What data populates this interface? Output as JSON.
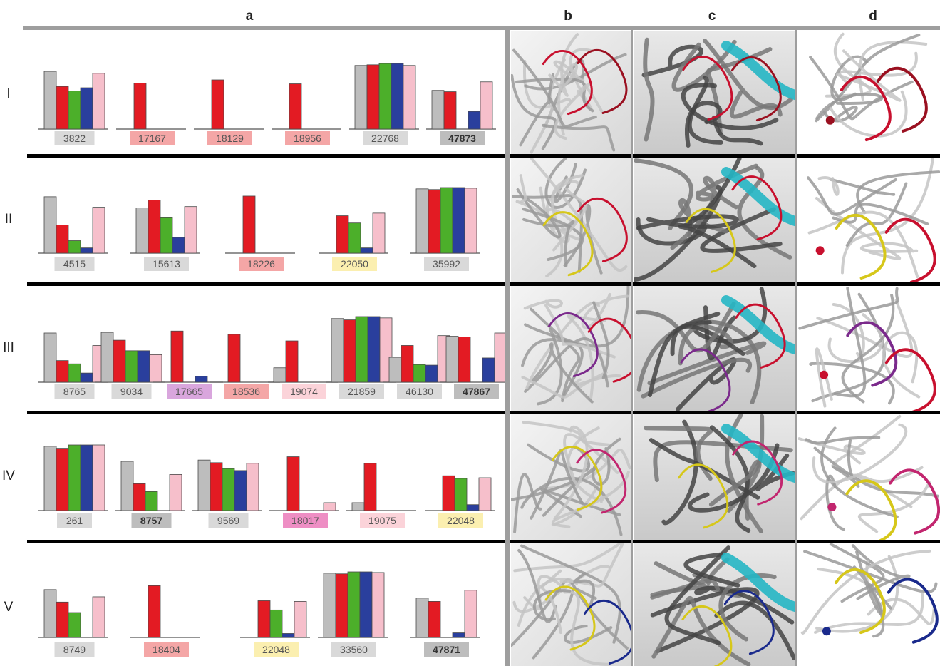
{
  "column_headers": [
    "a",
    "b",
    "c",
    "d"
  ],
  "row_labels": [
    "I",
    "II",
    "III",
    "IV",
    "V"
  ],
  "colors": {
    "gray": "#bdbdbd",
    "red": "#e31b23",
    "green": "#4caf2a",
    "blue": "#2a3f9d",
    "pink": "#f6bfcb",
    "label_gray": "#d9d9d9",
    "label_dark": "#bdbdbd",
    "label_red": "#f4a6a6",
    "label_yellow": "#fbefb0",
    "label_purple": "#d9a6dd",
    "label_magenta": "#ee8ec4",
    "label_pink": "#fbd3d9",
    "cyan_helix": "#25b6c4",
    "structure_gray": "#5b5b5b"
  },
  "chart_data": {
    "type": "bar",
    "series_order": [
      "gray",
      "red",
      "green",
      "blue",
      "pink"
    ],
    "ylim": [
      0,
      1
    ],
    "rows": [
      {
        "label": "I",
        "charts": [
          {
            "id": "3822",
            "tag": "label_gray",
            "bold": false,
            "values": [
              0.88,
              0.65,
              0.58,
              0.63,
              0.85
            ]
          },
          {
            "id": "17167",
            "tag": "label_red",
            "bold": false,
            "values": [
              0,
              0.7,
              0,
              0,
              0
            ]
          },
          {
            "id": "18129",
            "tag": "label_red",
            "bold": false,
            "values": [
              0,
              0.75,
              0,
              0,
              0
            ]
          },
          {
            "id": "18956",
            "tag": "label_red",
            "bold": false,
            "values": [
              0,
              0.69,
              0,
              0,
              0
            ]
          },
          {
            "id": "22768",
            "tag": "label_gray",
            "bold": false,
            "values": [
              0.97,
              0.98,
              1.0,
              1.0,
              0.97
            ]
          },
          {
            "id": "47873",
            "tag": "label_dark",
            "bold": true,
            "values": [
              0.59,
              0.57,
              0,
              0.27,
              0.72
            ]
          }
        ]
      },
      {
        "label": "II",
        "charts": [
          {
            "id": "4515",
            "tag": "label_gray",
            "bold": false,
            "values": [
              0.86,
              0.43,
              0.19,
              0.08,
              0.7
            ]
          },
          {
            "id": "15613",
            "tag": "label_gray",
            "bold": false,
            "values": [
              0.69,
              0.81,
              0.54,
              0.24,
              0.71
            ]
          },
          {
            "id": "18226",
            "tag": "label_red",
            "bold": false,
            "values": [
              0,
              0.87,
              0,
              0,
              0
            ]
          },
          {
            "id": "22050",
            "tag": "label_yellow",
            "bold": false,
            "values": [
              0,
              0.57,
              0.46,
              0.08,
              0.61
            ]
          },
          {
            "id": "35992",
            "tag": "label_gray",
            "bold": false,
            "values": [
              0.98,
              0.97,
              1.0,
              1.0,
              0.99
            ]
          }
        ]
      },
      {
        "label": "III",
        "charts": [
          {
            "id": "8765",
            "tag": "label_gray",
            "bold": false,
            "values": [
              0.75,
              0.33,
              0.28,
              0.14,
              0.56
            ]
          },
          {
            "id": "9034",
            "tag": "label_gray",
            "bold": false,
            "values": [
              0.76,
              0.64,
              0.48,
              0.48,
              0.42
            ]
          },
          {
            "id": "17665",
            "tag": "label_purple",
            "bold": false,
            "values": [
              0,
              0.78,
              0,
              0.09,
              0
            ]
          },
          {
            "id": "18536",
            "tag": "label_red",
            "bold": false,
            "values": [
              0,
              0.73,
              0,
              0,
              0
            ]
          },
          {
            "id": "19074",
            "tag": "label_pink",
            "bold": false,
            "values": [
              0.22,
              0.63,
              0,
              0,
              0
            ]
          },
          {
            "id": "21859",
            "tag": "label_gray",
            "bold": false,
            "values": [
              0.97,
              0.95,
              1.0,
              1.0,
              0.98
            ]
          },
          {
            "id": "46130",
            "tag": "label_gray",
            "bold": false,
            "values": [
              0.38,
              0.56,
              0.27,
              0.26,
              0.71
            ]
          },
          {
            "id": "47867",
            "tag": "label_dark",
            "bold": true,
            "values": [
              0.7,
              0.69,
              0,
              0.37,
              0.75
            ]
          }
        ]
      },
      {
        "label": "IV",
        "charts": [
          {
            "id": "261",
            "tag": "label_gray",
            "bold": false,
            "values": [
              0.98,
              0.95,
              1.0,
              1.0,
              1.0
            ]
          },
          {
            "id": "8757",
            "tag": "label_dark",
            "bold": true,
            "values": [
              0.75,
              0.41,
              0.29,
              0,
              0.55
            ]
          },
          {
            "id": "9569",
            "tag": "label_gray",
            "bold": false,
            "values": [
              0.77,
              0.73,
              0.64,
              0.61,
              0.72
            ]
          },
          {
            "id": "18017",
            "tag": "label_magenta",
            "bold": false,
            "values": [
              0,
              0.82,
              0,
              0,
              0.12
            ]
          },
          {
            "id": "19075",
            "tag": "label_pink",
            "bold": false,
            "values": [
              0.12,
              0.72,
              0,
              0,
              0
            ]
          },
          {
            "id": "22048",
            "tag": "label_yellow",
            "bold": false,
            "values": [
              0,
              0.53,
              0.49,
              0.09,
              0.5
            ]
          }
        ]
      },
      {
        "label": "V",
        "charts": [
          {
            "id": "8749",
            "tag": "label_gray",
            "bold": false,
            "values": [
              0.73,
              0.54,
              0.38,
              0,
              0.62
            ]
          },
          {
            "id": "18404",
            "tag": "label_red",
            "bold": false,
            "values": [
              0,
              0.79,
              0,
              0,
              0
            ]
          },
          {
            "id": "22048",
            "tag": "label_yellow",
            "bold": false,
            "values": [
              0,
              0.56,
              0.42,
              0.06,
              0.55
            ]
          },
          {
            "id": "33560",
            "tag": "label_gray",
            "bold": false,
            "values": [
              0.98,
              0.97,
              1.0,
              1.0,
              0.99
            ]
          },
          {
            "id": "47871",
            "tag": "label_dark",
            "bold": true,
            "values": [
              0.6,
              0.55,
              0,
              0.07,
              0.72
            ]
          }
        ]
      }
    ]
  }
}
